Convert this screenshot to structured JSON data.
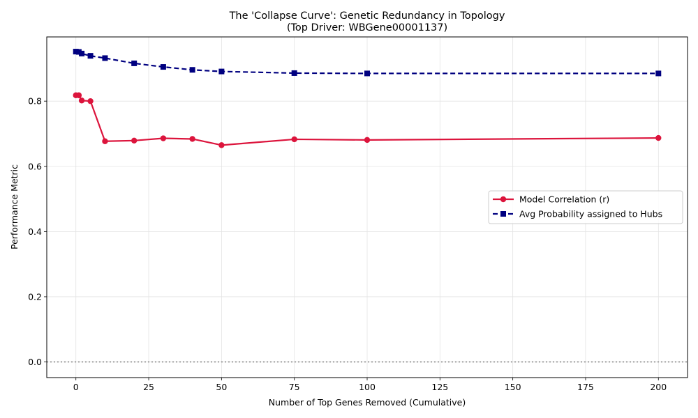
{
  "chart_data": {
    "type": "line",
    "title": "The 'Collapse Curve': Genetic Redundancy in Topology",
    "subtitle": "(Top Driver: WBGene00001137)",
    "xlabel": "Number of Top Genes Removed (Cumulative)",
    "ylabel": "Performance Metric",
    "xlim": [
      -10,
      210
    ],
    "ylim": [
      -0.048,
      0.997
    ],
    "x_ticks": [
      0,
      25,
      50,
      75,
      100,
      125,
      150,
      175,
      200
    ],
    "y_ticks": [
      0.0,
      0.2,
      0.4,
      0.6,
      0.8
    ],
    "grid": true,
    "reference_line": {
      "y": 0.0,
      "style": "dotted",
      "color": "#808080"
    },
    "legend_position": "center-right",
    "series": [
      {
        "name": "Model Correlation (r)",
        "color": "#dc143c",
        "marker": "circle",
        "line_style": "solid",
        "x": [
          0,
          1,
          2,
          5,
          10,
          20,
          30,
          40,
          50,
          75,
          100,
          200
        ],
        "y": [
          0.818,
          0.818,
          0.802,
          0.8,
          0.677,
          0.679,
          0.686,
          0.684,
          0.665,
          0.683,
          0.681,
          0.687
        ]
      },
      {
        "name": "Avg Probability assigned to Hubs",
        "color": "#000080",
        "marker": "square",
        "line_style": "dashed",
        "x": [
          0,
          1,
          2,
          5,
          10,
          20,
          30,
          40,
          50,
          75,
          100,
          200
        ],
        "y": [
          0.952,
          0.951,
          0.946,
          0.939,
          0.932,
          0.916,
          0.905,
          0.896,
          0.891,
          0.886,
          0.885,
          0.885
        ]
      }
    ]
  }
}
